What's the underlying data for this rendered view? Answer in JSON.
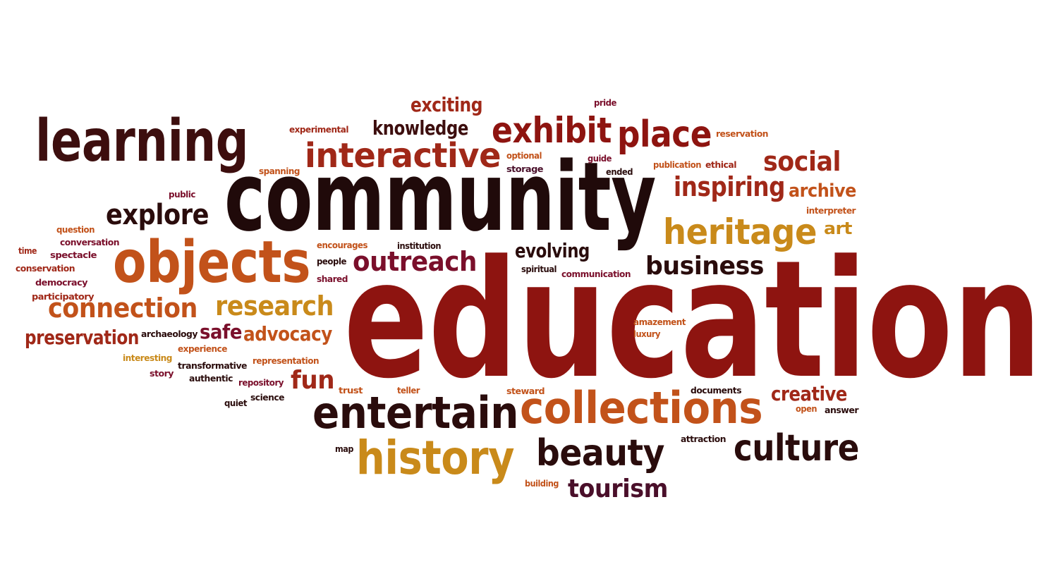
{
  "palette": {
    "maroon": "#8E1410",
    "dark_brown": "#2A0C0C",
    "brown_red": "#A02818",
    "orange": "#C2521A",
    "gold": "#C98A1A",
    "burgundy": "#7A0F2B",
    "red": "#B52A18"
  },
  "words": [
    {
      "text": "education",
      "color": "#8E1410"
    },
    {
      "text": "community",
      "color": "#200A0A"
    },
    {
      "text": "learning",
      "color": "#3D0E0E"
    },
    {
      "text": "objects",
      "color": "#C2521A"
    },
    {
      "text": "collections",
      "color": "#C2521A"
    },
    {
      "text": "entertain",
      "color": "#2A0C0C"
    },
    {
      "text": "history",
      "color": "#C98A1A"
    },
    {
      "text": "interactive",
      "color": "#A02818"
    },
    {
      "text": "exhibit",
      "color": "#8E1410"
    },
    {
      "text": "place",
      "color": "#8E1410"
    },
    {
      "text": "heritage",
      "color": "#C98A1A"
    },
    {
      "text": "beauty",
      "color": "#2A0C0C"
    },
    {
      "text": "culture",
      "color": "#2A0C0C"
    },
    {
      "text": "explore",
      "color": "#2A0C0C"
    },
    {
      "text": "connection",
      "color": "#C2521A"
    },
    {
      "text": "research",
      "color": "#C98A1A"
    },
    {
      "text": "outreach",
      "color": "#7A0F2B"
    },
    {
      "text": "business",
      "color": "#2A0C0C"
    },
    {
      "text": "inspiring",
      "color": "#A02818"
    },
    {
      "text": "social",
      "color": "#A02818"
    },
    {
      "text": "tourism",
      "color": "#4A0F2A"
    },
    {
      "text": "fun",
      "color": "#A02818"
    },
    {
      "text": "exciting",
      "color": "#A02818"
    },
    {
      "text": "knowledge",
      "color": "#3D0E0E"
    },
    {
      "text": "preservation",
      "color": "#A02818"
    },
    {
      "text": "advocacy",
      "color": "#C2521A"
    },
    {
      "text": "safe",
      "color": "#7A0F2B"
    },
    {
      "text": "evolving",
      "color": "#2A0C0C"
    },
    {
      "text": "creative",
      "color": "#A02818"
    },
    {
      "text": "archive",
      "color": "#C2521A"
    },
    {
      "text": "art",
      "color": "#C98A1A"
    },
    {
      "text": "pride",
      "color": "#7A0F2B"
    },
    {
      "text": "experimental",
      "color": "#A02818"
    },
    {
      "text": "reservation",
      "color": "#C2521A"
    },
    {
      "text": "optional",
      "color": "#C2521A"
    },
    {
      "text": "storage",
      "color": "#4A0F2A"
    },
    {
      "text": "guide",
      "color": "#7A0F2B"
    },
    {
      "text": "ended",
      "color": "#2A0C0C"
    },
    {
      "text": "publication",
      "color": "#C2521A"
    },
    {
      "text": "ethical",
      "color": "#A02818"
    },
    {
      "text": "spanning",
      "color": "#C2521A"
    },
    {
      "text": "public",
      "color": "#7A0F2B"
    },
    {
      "text": "interpreter",
      "color": "#C2521A"
    },
    {
      "text": "question",
      "color": "#C2521A"
    },
    {
      "text": "conversation",
      "color": "#7A0F2B"
    },
    {
      "text": "time",
      "color": "#A02818"
    },
    {
      "text": "spectacle",
      "color": "#7A0F2B"
    },
    {
      "text": "conservation",
      "color": "#A02818"
    },
    {
      "text": "democracy",
      "color": "#7A0F2B"
    },
    {
      "text": "participatory",
      "color": "#A02818"
    },
    {
      "text": "encourages",
      "color": "#C2521A"
    },
    {
      "text": "institution",
      "color": "#2A0C0C"
    },
    {
      "text": "people",
      "color": "#2A0C0C"
    },
    {
      "text": "shared",
      "color": "#7A0F2B"
    },
    {
      "text": "spiritual",
      "color": "#2A0C0C"
    },
    {
      "text": "communication",
      "color": "#7A0F2B"
    },
    {
      "text": "archaeology",
      "color": "#2A0C0C"
    },
    {
      "text": "amazement",
      "color": "#C2521A"
    },
    {
      "text": "luxury",
      "color": "#C2521A"
    },
    {
      "text": "interesting",
      "color": "#C98A1A"
    },
    {
      "text": "experience",
      "color": "#C2521A"
    },
    {
      "text": "representation",
      "color": "#C2521A"
    },
    {
      "text": "story",
      "color": "#7A0F2B"
    },
    {
      "text": "transformative",
      "color": "#2A0C0C"
    },
    {
      "text": "authentic",
      "color": "#2A0C0C"
    },
    {
      "text": "repository",
      "color": "#7A0F2B"
    },
    {
      "text": "quiet",
      "color": "#2A0C0C"
    },
    {
      "text": "science",
      "color": "#2A0C0C"
    },
    {
      "text": "trust",
      "color": "#C2521A"
    },
    {
      "text": "teller",
      "color": "#C2521A"
    },
    {
      "text": "steward",
      "color": "#C2521A"
    },
    {
      "text": "documents",
      "color": "#2A0C0C"
    },
    {
      "text": "open",
      "color": "#C2521A"
    },
    {
      "text": "answer",
      "color": "#2A0C0C"
    },
    {
      "text": "map",
      "color": "#2A0C0C"
    },
    {
      "text": "attraction",
      "color": "#2A0C0C"
    },
    {
      "text": "building",
      "color": "#C2521A"
    }
  ]
}
